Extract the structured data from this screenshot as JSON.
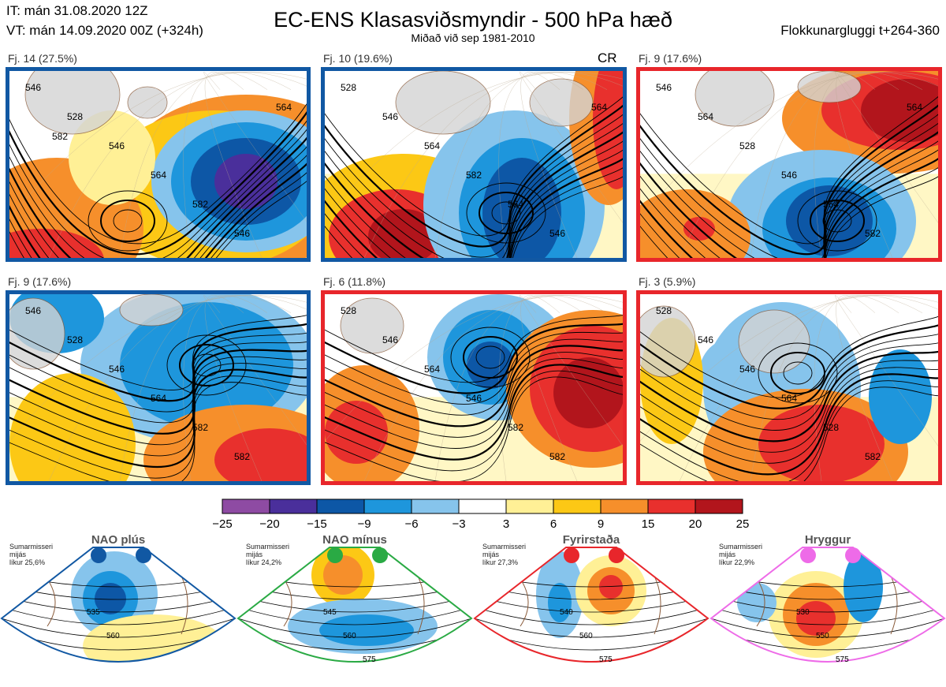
{
  "header": {
    "it": "IT: mán 31.08.2020 12Z",
    "vt": "VT: mán 14.09.2020 00Z  (+324h)",
    "title": "EC-ENS Klasasviðsmyndir - 500 hPa hæð",
    "subtitle": "Miðað við sep 1981-2010",
    "window": "Flokkunargluggi t+264-360"
  },
  "panels": [
    {
      "label": "Fj. 14 (27.5%)",
      "border": "#1158a3",
      "contours": [
        "546",
        "528",
        "546",
        "564",
        "582",
        "546",
        "564",
        "582"
      ]
    },
    {
      "label": "Fj. 10 (19.6%)",
      "border": "#1158a3",
      "badge": "CR",
      "contours": [
        "528",
        "546",
        "564",
        "582",
        "564",
        "546",
        "564"
      ]
    },
    {
      "label": "Fj. 9 (17.6%)",
      "border": "#e8262b",
      "contours": [
        "546",
        "564",
        "528",
        "546",
        "564",
        "582",
        "564"
      ]
    },
    {
      "label": "Fj. 9 (17.6%)",
      "border": "#1158a3",
      "contours": [
        "546",
        "528",
        "546",
        "564",
        "582",
        "582"
      ]
    },
    {
      "label": "Fj. 6 (11.8%)",
      "border": "#e8262b",
      "contours": [
        "528",
        "546",
        "564",
        "546",
        "582",
        "582"
      ]
    },
    {
      "label": "Fj. 3 (5.9%)",
      "border": "#e8262b",
      "contours": [
        "528",
        "546",
        "546",
        "564",
        "528",
        "582"
      ]
    }
  ],
  "colorbar": {
    "ticks": [
      "−25",
      "−20",
      "−15",
      "−9",
      "−6",
      "−3",
      "3",
      "6",
      "9",
      "15",
      "20",
      "25"
    ],
    "colors": [
      "#8e4ba3",
      "#4a2f9b",
      "#0d57a6",
      "#1e96dc",
      "#86c4ec",
      "#ffffff",
      "#fff096",
      "#fcc815",
      "#f68f2b",
      "#e8302d",
      "#b2151c"
    ]
  },
  "regimes": [
    {
      "name": "NAO plús",
      "note": [
        "Sumarmisseri",
        "mijás",
        "líkur 25,6%"
      ],
      "color": "#1158a3",
      "contours": [
        "535",
        "560"
      ]
    },
    {
      "name": "NAO mínus",
      "note": [
        "Sumarmisseri",
        "mijás",
        "líkur 24,2%"
      ],
      "color": "#2aaa44",
      "contours": [
        "545",
        "560",
        "575"
      ]
    },
    {
      "name": "Fyrirstaða",
      "note": [
        "Sumarmisseri",
        "mijás",
        "líkur 27,3%"
      ],
      "color": "#e8262b",
      "contours": [
        "540",
        "560",
        "575"
      ]
    },
    {
      "name": "Hryggur",
      "note": [
        "Sumarmisseri",
        "mijás",
        "líkur 22,9%"
      ],
      "color": "#ee6be8",
      "contours": [
        "530",
        "550",
        "575"
      ]
    }
  ]
}
